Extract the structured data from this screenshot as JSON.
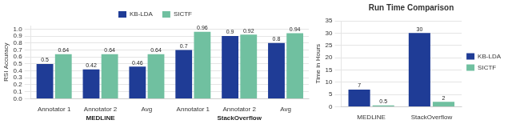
{
  "chart_data": [
    {
      "type": "bar",
      "ylabel": "RSI Accuracy",
      "categories": [
        "Annotator 1",
        "Annotator 2",
        "Avg",
        "Annotator 1",
        "Annotator 2",
        "Avg"
      ],
      "annotations": [
        "MEDLINE",
        "StackOverflow"
      ],
      "series": [
        {
          "name": "KB-LDA",
          "color": "#1F3C96",
          "values": [
            0.5,
            0.42,
            0.46,
            0.7,
            0.9,
            0.8
          ]
        },
        {
          "name": "SICTF",
          "color": "#70C0A0",
          "values": [
            0.64,
            0.64,
            0.64,
            0.96,
            0.92,
            0.94
          ]
        }
      ],
      "ylim": [
        0,
        1.05
      ],
      "yticks": [
        {
          "value": 0,
          "label": "0.0"
        },
        0.1,
        0.2,
        0.3,
        0.4,
        0.5,
        0.6,
        0.7,
        0.8,
        0.9,
        {
          "value": 1.0,
          "label": "1.0"
        }
      ],
      "grid": true,
      "legend": "top",
      "data_labels": true
    },
    {
      "type": "bar",
      "title": "Run Time Comparison",
      "ylabel": "Time in Hours",
      "categories": [
        "MEDLINE",
        "StackOverflow"
      ],
      "series": [
        {
          "name": "KB-LDA",
          "color": "#1F3C96",
          "values": [
            7,
            30
          ]
        },
        {
          "name": "SICTF",
          "color": "#70C0A0",
          "values": [
            0.5,
            2
          ]
        }
      ],
      "ylim": [
        0,
        35
      ],
      "yticks": [
        0,
        5,
        10,
        15,
        20,
        25,
        30,
        35
      ],
      "grid": true,
      "legend": "right",
      "data_labels": true
    }
  ]
}
